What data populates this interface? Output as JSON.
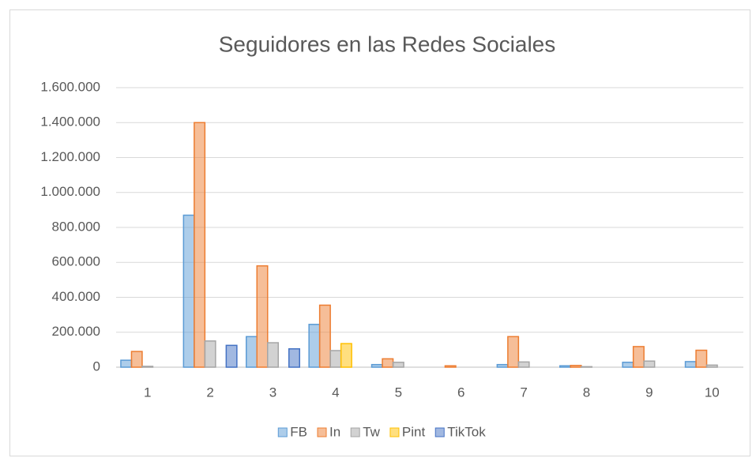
{
  "chart_data": {
    "type": "bar",
    "title": "Seguidores en las Redes Sociales",
    "categories": [
      "1",
      "2",
      "3",
      "4",
      "5",
      "6",
      "7",
      "8",
      "9",
      "10"
    ],
    "series": [
      {
        "name": "FB",
        "color": "#5b9bd5",
        "values": [
          40000,
          870000,
          175000,
          245000,
          15000,
          0,
          15000,
          8000,
          28000,
          32000
        ]
      },
      {
        "name": "In",
        "color": "#ed7d31",
        "values": [
          90000,
          1400000,
          580000,
          355000,
          48000,
          8000,
          175000,
          10000,
          118000,
          97000
        ]
      },
      {
        "name": "Tw",
        "color": "#a5a5a5",
        "values": [
          5000,
          150000,
          140000,
          95000,
          28000,
          0,
          30000,
          3000,
          35000,
          12000
        ]
      },
      {
        "name": "Pint",
        "color": "#ffc000",
        "values": [
          0,
          0,
          0,
          135000,
          0,
          0,
          0,
          0,
          0,
          0
        ]
      },
      {
        "name": "TikTok",
        "color": "#4472c4",
        "values": [
          0,
          125000,
          105000,
          0,
          0,
          0,
          0,
          0,
          0,
          0
        ]
      }
    ],
    "ylim": [
      0,
      1600000
    ],
    "yticks": [
      0,
      {
        "value": 200000,
        "label": "200.000"
      },
      {
        "value": 400000,
        "label": "400.000"
      },
      {
        "value": 600000,
        "label": "600.000"
      },
      {
        "value": 800000,
        "label": "800.000"
      },
      {
        "value": 1000000,
        "label": "1.000.000"
      },
      {
        "value": 1200000,
        "label": "1.200.000"
      },
      {
        "value": 1400000,
        "label": "1.400.000"
      },
      {
        "value": 1600000,
        "label": "1.600.000"
      }
    ],
    "grid": true,
    "legend": "bottom"
  }
}
